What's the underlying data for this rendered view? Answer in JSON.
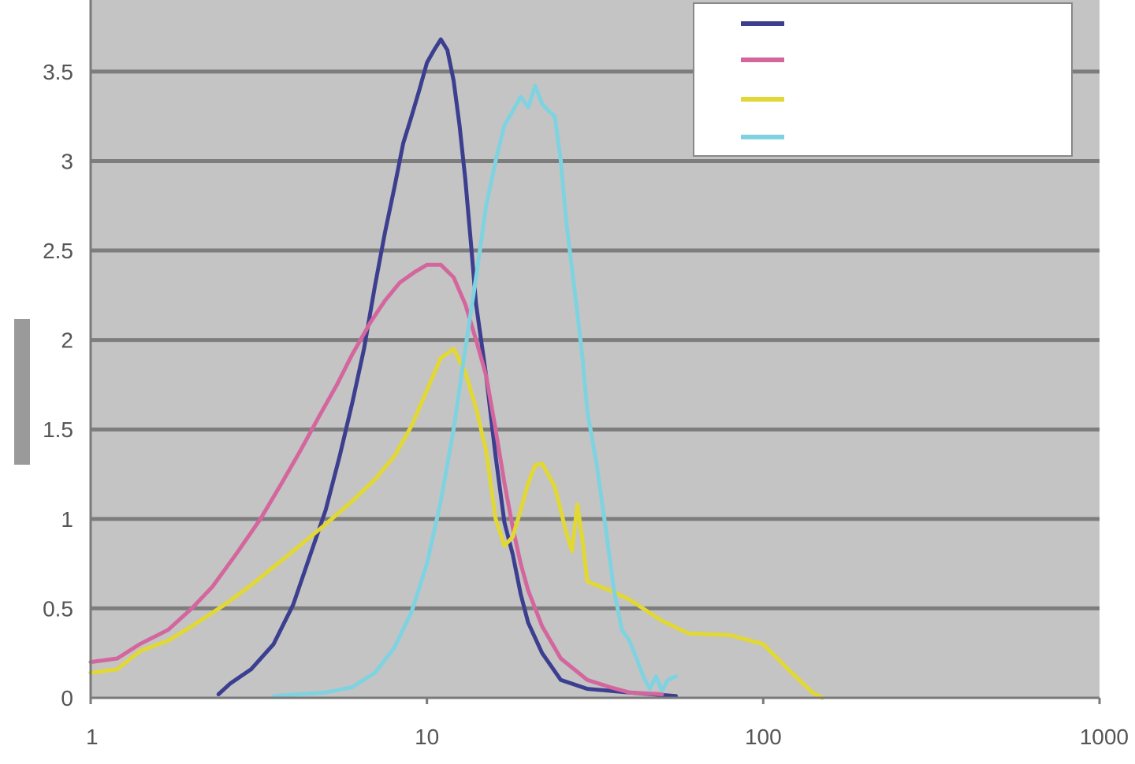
{
  "chart_data": {
    "type": "line",
    "title": "",
    "xlabel": "",
    "ylabel": "",
    "x_scale": "log",
    "xlim": [
      1,
      1000
    ],
    "ylim": [
      0,
      3.9
    ],
    "x_ticks": [
      "1",
      "10",
      "100",
      "1000"
    ],
    "y_ticks": [
      "0",
      "0.5",
      "1",
      "1.5",
      "2",
      "2.5",
      "3",
      "3.5"
    ],
    "grid": "horizontal",
    "legend_position": "top-right",
    "series": [
      {
        "name": "",
        "color": "#3c3f8f",
        "points": [
          [
            2.4,
            0.02
          ],
          [
            2.6,
            0.08
          ],
          [
            3.0,
            0.16
          ],
          [
            3.5,
            0.3
          ],
          [
            4.0,
            0.52
          ],
          [
            4.5,
            0.8
          ],
          [
            5.0,
            1.05
          ],
          [
            5.5,
            1.35
          ],
          [
            6.0,
            1.65
          ],
          [
            6.5,
            1.95
          ],
          [
            7.0,
            2.3
          ],
          [
            7.5,
            2.6
          ],
          [
            8.0,
            2.85
          ],
          [
            8.5,
            3.1
          ],
          [
            9.0,
            3.25
          ],
          [
            9.5,
            3.4
          ],
          [
            10.0,
            3.55
          ],
          [
            10.5,
            3.62
          ],
          [
            11.0,
            3.68
          ],
          [
            11.5,
            3.62
          ],
          [
            12.0,
            3.45
          ],
          [
            12.5,
            3.2
          ],
          [
            13.0,
            2.9
          ],
          [
            13.5,
            2.55
          ],
          [
            14.0,
            2.2
          ],
          [
            15.0,
            1.8
          ],
          [
            16.0,
            1.35
          ],
          [
            17.0,
            0.98
          ],
          [
            18.0,
            0.8
          ],
          [
            19.0,
            0.58
          ],
          [
            20.0,
            0.42
          ],
          [
            22.0,
            0.25
          ],
          [
            25.0,
            0.1
          ],
          [
            30.0,
            0.05
          ],
          [
            40.0,
            0.03
          ],
          [
            55.0,
            0.01
          ]
        ]
      },
      {
        "name": "",
        "color": "#d4669e",
        "points": [
          [
            1,
            0.2
          ],
          [
            1.2,
            0.22
          ],
          [
            1.4,
            0.3
          ],
          [
            1.7,
            0.38
          ],
          [
            2.0,
            0.5
          ],
          [
            2.3,
            0.62
          ],
          [
            2.7,
            0.8
          ],
          [
            3.2,
            1.0
          ],
          [
            3.7,
            1.2
          ],
          [
            4.2,
            1.38
          ],
          [
            4.8,
            1.58
          ],
          [
            5.4,
            1.75
          ],
          [
            6.0,
            1.92
          ],
          [
            6.8,
            2.1
          ],
          [
            7.5,
            2.22
          ],
          [
            8.3,
            2.32
          ],
          [
            9.2,
            2.38
          ],
          [
            10.0,
            2.42
          ],
          [
            11.0,
            2.42
          ],
          [
            12.0,
            2.35
          ],
          [
            13.0,
            2.2
          ],
          [
            14.0,
            2.0
          ],
          [
            15.0,
            1.8
          ],
          [
            16.0,
            1.5
          ],
          [
            17.0,
            1.2
          ],
          [
            18.0,
            0.95
          ],
          [
            19.0,
            0.75
          ],
          [
            20.0,
            0.6
          ],
          [
            22.0,
            0.4
          ],
          [
            25.0,
            0.22
          ],
          [
            30.0,
            0.1
          ],
          [
            35.0,
            0.06
          ],
          [
            40.0,
            0.03
          ],
          [
            50.0,
            0.02
          ]
        ]
      },
      {
        "name": "",
        "color": "#e2d834",
        "points": [
          [
            1,
            0.14
          ],
          [
            1.2,
            0.16
          ],
          [
            1.4,
            0.26
          ],
          [
            1.7,
            0.32
          ],
          [
            2.0,
            0.4
          ],
          [
            2.5,
            0.52
          ],
          [
            3.0,
            0.63
          ],
          [
            4.0,
            0.82
          ],
          [
            5.0,
            0.97
          ],
          [
            6.0,
            1.1
          ],
          [
            7.0,
            1.22
          ],
          [
            8.0,
            1.35
          ],
          [
            9.0,
            1.52
          ],
          [
            10.0,
            1.72
          ],
          [
            11.0,
            1.9
          ],
          [
            12.0,
            1.95
          ],
          [
            13.0,
            1.82
          ],
          [
            14.0,
            1.62
          ],
          [
            15.0,
            1.38
          ],
          [
            16.0,
            1.0
          ],
          [
            17.0,
            0.85
          ],
          [
            18.0,
            0.9
          ],
          [
            19.0,
            1.05
          ],
          [
            20.0,
            1.2
          ],
          [
            21.0,
            1.3
          ],
          [
            22.0,
            1.31
          ],
          [
            24.0,
            1.18
          ],
          [
            26.0,
            0.92
          ],
          [
            27.0,
            0.82
          ],
          [
            28.0,
            1.08
          ],
          [
            29.0,
            0.88
          ],
          [
            30.0,
            0.65
          ],
          [
            35.0,
            0.6
          ],
          [
            40.0,
            0.55
          ],
          [
            50.0,
            0.43
          ],
          [
            60.0,
            0.36
          ],
          [
            80.0,
            0.35
          ],
          [
            100.0,
            0.3
          ],
          [
            120.0,
            0.15
          ],
          [
            140.0,
            0.03
          ],
          [
            150.0,
            0.0
          ]
        ]
      },
      {
        "name": "",
        "color": "#7fd3e0",
        "points": [
          [
            3.5,
            0.01
          ],
          [
            5.0,
            0.03
          ],
          [
            6.0,
            0.06
          ],
          [
            7.0,
            0.14
          ],
          [
            8.0,
            0.28
          ],
          [
            9.0,
            0.48
          ],
          [
            10.0,
            0.75
          ],
          [
            11.0,
            1.1
          ],
          [
            12.0,
            1.5
          ],
          [
            13.0,
            1.95
          ],
          [
            14.0,
            2.35
          ],
          [
            15.0,
            2.75
          ],
          [
            16.0,
            3.0
          ],
          [
            17.0,
            3.2
          ],
          [
            18.0,
            3.28
          ],
          [
            19.0,
            3.36
          ],
          [
            20.0,
            3.3
          ],
          [
            21.0,
            3.42
          ],
          [
            22.0,
            3.32
          ],
          [
            23.0,
            3.28
          ],
          [
            24.0,
            3.25
          ],
          [
            25.0,
            3.0
          ],
          [
            26.0,
            2.65
          ],
          [
            27.0,
            2.4
          ],
          [
            28.0,
            2.15
          ],
          [
            29.0,
            1.9
          ],
          [
            30.0,
            1.6
          ],
          [
            32.0,
            1.3
          ],
          [
            34.0,
            0.95
          ],
          [
            36.0,
            0.6
          ],
          [
            38.0,
            0.38
          ],
          [
            40.0,
            0.32
          ],
          [
            42.0,
            0.22
          ],
          [
            44.0,
            0.12
          ],
          [
            46.0,
            0.05
          ],
          [
            48.0,
            0.12
          ],
          [
            50.0,
            0.04
          ],
          [
            52.0,
            0.1
          ],
          [
            55.0,
            0.12
          ]
        ]
      }
    ]
  },
  "legend": {
    "entries": [
      "",
      "",
      "",
      ""
    ]
  }
}
